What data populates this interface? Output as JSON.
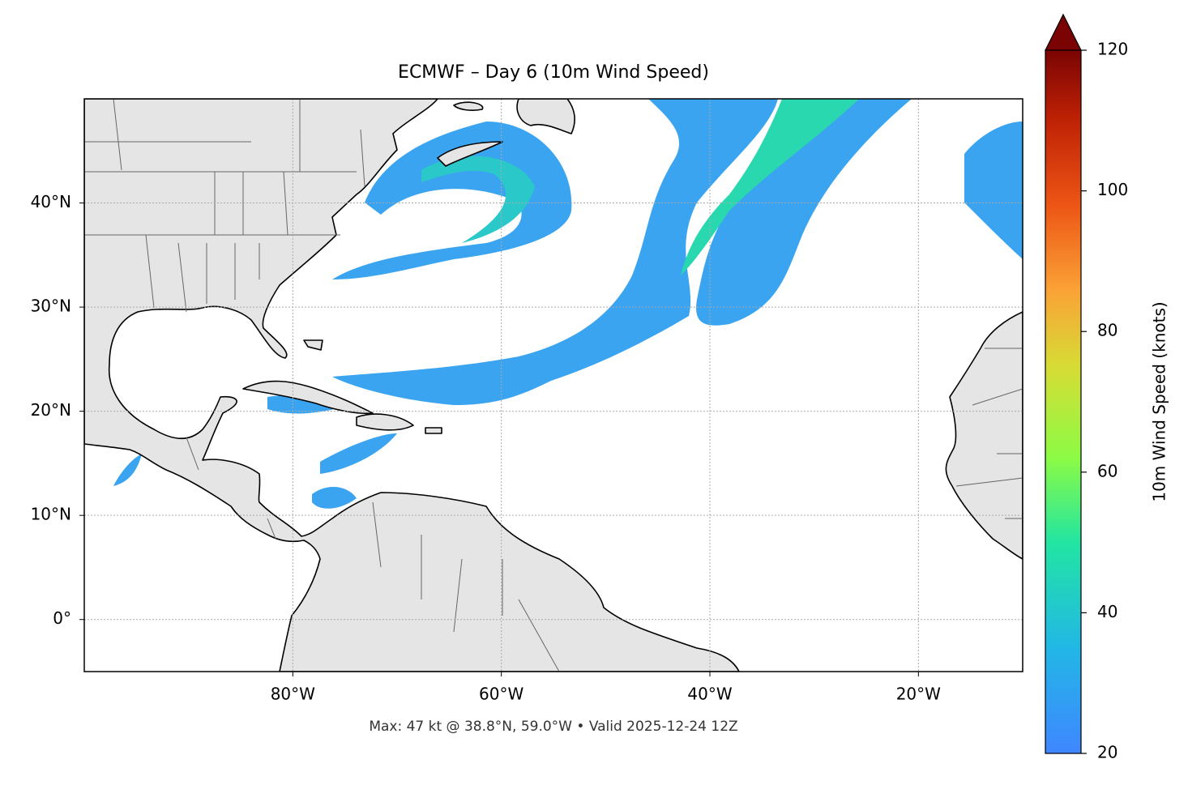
{
  "title": "ECMWF – Day 6 (10m Wind Speed)",
  "map": {
    "lon_range": [
      -100,
      -10
    ],
    "lat_range": [
      -5,
      50
    ],
    "lon_ticks": [
      {
        "value": -80,
        "label": "80°W"
      },
      {
        "value": -60,
        "label": "60°W"
      },
      {
        "value": -40,
        "label": "40°W"
      },
      {
        "value": -20,
        "label": "20°W"
      }
    ],
    "lat_ticks": [
      {
        "value": 0,
        "label": "0°"
      },
      {
        "value": 10,
        "label": "10°N"
      },
      {
        "value": 20,
        "label": "20°N"
      },
      {
        "value": 30,
        "label": "30°N"
      },
      {
        "value": 40,
        "label": "40°N"
      }
    ]
  },
  "colorbar": {
    "label": "10m Wind Speed (knots)",
    "range": [
      20,
      120
    ],
    "ticks": [
      20,
      40,
      60,
      80,
      100,
      120
    ]
  },
  "footer": "Max: 47 kt @ 38.8°N, 59.0°W • Valid 2025-12-24 12Z"
}
